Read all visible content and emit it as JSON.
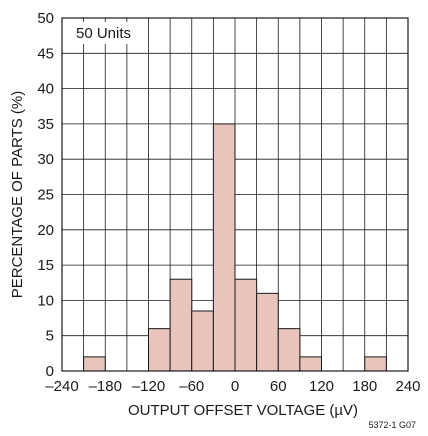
{
  "chart_data": {
    "type": "bar",
    "title": "",
    "annotation": "50 Units",
    "figure_id": "5372-1 G07",
    "xlabel": "OUTPUT OFFSET VOLTAGE (µV)",
    "ylabel": "PERCENTAGE OF PARTS (%)",
    "xlim": [
      -240,
      240
    ],
    "ylim": [
      0,
      50
    ],
    "xticks": [
      -240,
      -180,
      -120,
      -60,
      0,
      60,
      120,
      180,
      240
    ],
    "xtick_labels": [
      "–240",
      "–180",
      "–120",
      "–60",
      "0",
      "60",
      "120",
      "180",
      "240"
    ],
    "yticks": [
      0,
      5,
      10,
      15,
      20,
      25,
      30,
      35,
      40,
      45,
      50
    ],
    "grid": true,
    "bin_width": 30,
    "bins": [
      {
        "center": -195,
        "value": 2
      },
      {
        "center": -105,
        "value": 6
      },
      {
        "center": -75,
        "value": 13
      },
      {
        "center": -45,
        "value": 8.5
      },
      {
        "center": -15,
        "value": 35
      },
      {
        "center": 15,
        "value": 13
      },
      {
        "center": 45,
        "value": 11
      },
      {
        "center": 75,
        "value": 6
      },
      {
        "center": 105,
        "value": 2
      },
      {
        "center": 195,
        "value": 2
      }
    ],
    "bar_color": "#e8c4bd",
    "bar_edge_color": "#1a1a1a",
    "grid_color": "#1a1a1a"
  }
}
